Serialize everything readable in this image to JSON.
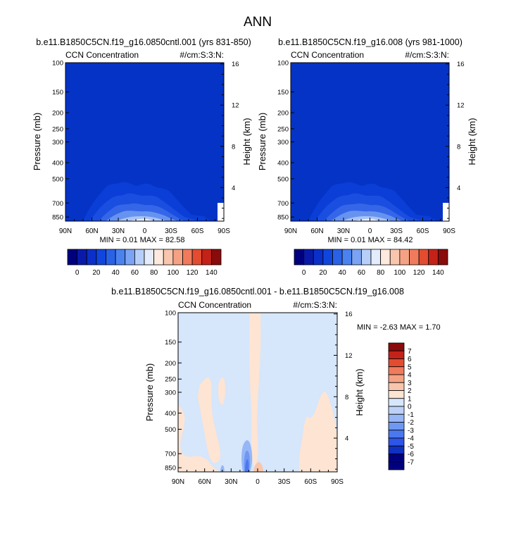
{
  "page": {
    "title": "ANN"
  },
  "colors": {
    "panel_fill": "#0433c6",
    "diff_fill": "#d6e6fb",
    "ccn_scale": [
      "#00007f",
      "#0a1aa8",
      "#0b2fc9",
      "#1046de",
      "#2a62e6",
      "#4a82f0",
      "#7aa3f4",
      "#b7cff8",
      "#e4ecfc",
      "#fde9dd",
      "#f8c6ad",
      "#f5a284",
      "#f07b5c",
      "#e34c30",
      "#c42218",
      "#8a0b0b"
    ],
    "diff_scale": [
      "#00007f",
      "#1030c0",
      "#2d55e8",
      "#4b78ef",
      "#6f98f3",
      "#97b6f6",
      "#bdd1f8",
      "#d6e6fb",
      "#fde4d3",
      "#f8c6ad",
      "#f5a284",
      "#f07b5c",
      "#e34c30",
      "#c42218",
      "#8a0b0b"
    ]
  },
  "chart_data": [
    {
      "type": "heatmap",
      "title": "b.e11.B1850C5CN.f19_g16.0850cntl.001 (yrs 831-850)",
      "left_label": "CCN Concentration",
      "right_label": "#/cm:S:3:N:",
      "xlabel": "",
      "ylabel": "Pressure (mb)",
      "y2label": "Height (km)",
      "x_ticks": [
        "90N",
        "60N",
        "30N",
        "0",
        "30S",
        "60S",
        "90S"
      ],
      "y_ticks": [
        "100",
        "150",
        "200",
        "250",
        "300",
        "400",
        "500",
        "700",
        "850"
      ],
      "y_tick_values": [
        100,
        150,
        200,
        250,
        300,
        400,
        500,
        700,
        850
      ],
      "y2_ticks": [
        "16",
        "12",
        "8",
        "4"
      ],
      "y2_tick_values": [
        16,
        12,
        8,
        4
      ],
      "ylim": [
        100,
        900
      ],
      "stats": "MIN =  0.01  MAX =  82.58",
      "min": 0.01,
      "max": 82.58
    },
    {
      "type": "heatmap",
      "title": "b.e11.B1850C5CN.f19_g16.008 (yrs 981-1000)",
      "left_label": "CCN Concentration",
      "right_label": "#/cm:S:3:N:",
      "xlabel": "",
      "ylabel": "Pressure (mb)",
      "y2label": "Height (km)",
      "x_ticks": [
        "90N",
        "60N",
        "30N",
        "0",
        "30S",
        "60S",
        "90S"
      ],
      "y_ticks": [
        "100",
        "150",
        "200",
        "250",
        "300",
        "400",
        "500",
        "700",
        "850"
      ],
      "y_tick_values": [
        100,
        150,
        200,
        250,
        300,
        400,
        500,
        700,
        850
      ],
      "y2_ticks": [
        "16",
        "12",
        "8",
        "4"
      ],
      "y2_tick_values": [
        16,
        12,
        8,
        4
      ],
      "ylim": [
        100,
        900
      ],
      "stats": "MIN =  0.01  MAX =  84.42",
      "min": 0.01,
      "max": 84.42
    },
    {
      "type": "heatmap",
      "title": "b.e11.B1850C5CN.f19_g16.0850cntl.001 - b.e11.B1850C5CN.f19_g16.008",
      "left_label": "CCN Concentration",
      "right_label": "#/cm:S:3:N:",
      "xlabel": "",
      "ylabel": "Pressure (mb)",
      "y2label": "Height (km)",
      "x_ticks": [
        "90N",
        "60N",
        "30N",
        "0",
        "30S",
        "60S",
        "90S"
      ],
      "y_ticks": [
        "100",
        "150",
        "200",
        "250",
        "300",
        "400",
        "500",
        "700",
        "850"
      ],
      "y_tick_values": [
        100,
        150,
        200,
        250,
        300,
        400,
        500,
        700,
        850
      ],
      "y2_ticks": [
        "16",
        "12",
        "8",
        "4"
      ],
      "y2_tick_values": [
        16,
        12,
        8,
        4
      ],
      "ylim": [
        100,
        900
      ],
      "stats": "MIN = -2.63  MAX =   1.70",
      "min": -2.63,
      "max": 1.7
    }
  ],
  "colorbars": {
    "ccn": {
      "labels": [
        "0",
        "20",
        "40",
        "60",
        "80",
        "100",
        "120",
        "140"
      ]
    },
    "diff": {
      "labels": [
        "7",
        "6",
        "5",
        "4",
        "3",
        "2",
        "1",
        "0",
        "-1",
        "-2",
        "-3",
        "-4",
        "-5",
        "-6",
        "-7"
      ]
    }
  }
}
